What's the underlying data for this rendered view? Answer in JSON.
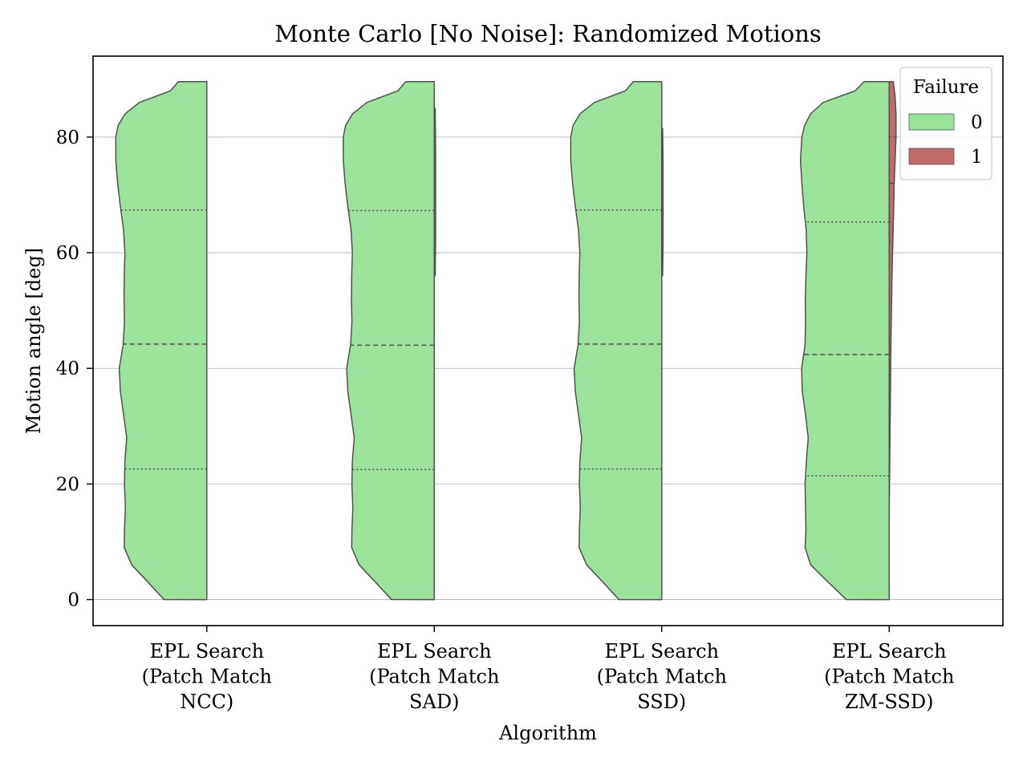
{
  "chart_data": {
    "type": "violin",
    "title": "Monte Carlo [No Noise]: Randomized Motions",
    "xlabel": "Algorithm",
    "ylabel": "Motion angle [deg]",
    "ylim": [
      -4.5,
      94
    ],
    "yticks": [
      0,
      20,
      40,
      60,
      80
    ],
    "grid": "horizontal",
    "legend": {
      "title": "Failure",
      "placement": "top-right",
      "entries": [
        {
          "label": "0",
          "color": "#9be39b"
        },
        {
          "label": "1",
          "color": "#bf6b6b"
        }
      ]
    },
    "categories": [
      [
        "EPL Search",
        "(Patch Match",
        "NCC)"
      ],
      [
        "EPL Search",
        "(Patch Match",
        "SAD)"
      ],
      [
        "EPL Search",
        "(Patch Match",
        "SSD)"
      ],
      [
        "EPL Search",
        "(Patch Match",
        "ZM-SSD)"
      ]
    ],
    "series": [
      {
        "name": "0",
        "color": "#9be39b",
        "groups": [
          {
            "min": 0,
            "max": 89.6,
            "q1": 22.6,
            "median": 44.2,
            "q3": 67.4,
            "profile": [
              [
                0,
                0.188
              ],
              [
                3,
                0.258
              ],
              [
                6,
                0.33
              ],
              [
                9,
                0.363
              ],
              [
                12,
                0.362
              ],
              [
                16,
                0.358
              ],
              [
                20,
                0.362
              ],
              [
                24,
                0.36
              ],
              [
                28,
                0.352
              ],
              [
                32,
                0.366
              ],
              [
                36,
                0.38
              ],
              [
                40,
                0.385
              ],
              [
                44,
                0.368
              ],
              [
                48,
                0.362
              ],
              [
                52,
                0.364
              ],
              [
                56,
                0.363
              ],
              [
                60,
                0.36
              ],
              [
                64,
                0.366
              ],
              [
                68,
                0.38
              ],
              [
                72,
                0.392
              ],
              [
                76,
                0.4
              ],
              [
                80,
                0.4
              ],
              [
                82,
                0.39
              ],
              [
                84,
                0.36
              ],
              [
                86,
                0.296
              ],
              [
                88,
                0.16
              ],
              [
                89.6,
                0.125
              ]
            ]
          },
          {
            "min": 0,
            "max": 89.6,
            "q1": 22.5,
            "median": 44.0,
            "q3": 67.3,
            "profile": [
              [
                0,
                0.188
              ],
              [
                3,
                0.258
              ],
              [
                6,
                0.33
              ],
              [
                9,
                0.363
              ],
              [
                12,
                0.362
              ],
              [
                16,
                0.358
              ],
              [
                20,
                0.362
              ],
              [
                24,
                0.36
              ],
              [
                28,
                0.352
              ],
              [
                32,
                0.366
              ],
              [
                36,
                0.38
              ],
              [
                40,
                0.385
              ],
              [
                44,
                0.368
              ],
              [
                48,
                0.362
              ],
              [
                52,
                0.364
              ],
              [
                56,
                0.363
              ],
              [
                60,
                0.36
              ],
              [
                64,
                0.366
              ],
              [
                68,
                0.38
              ],
              [
                72,
                0.392
              ],
              [
                76,
                0.4
              ],
              [
                80,
                0.4
              ],
              [
                82,
                0.39
              ],
              [
                84,
                0.36
              ],
              [
                86,
                0.296
              ],
              [
                88,
                0.16
              ],
              [
                89.6,
                0.125
              ]
            ]
          },
          {
            "min": 0,
            "max": 89.6,
            "q1": 22.6,
            "median": 44.2,
            "q3": 67.4,
            "profile": [
              [
                0,
                0.188
              ],
              [
                3,
                0.258
              ],
              [
                6,
                0.33
              ],
              [
                9,
                0.363
              ],
              [
                12,
                0.362
              ],
              [
                16,
                0.358
              ],
              [
                20,
                0.362
              ],
              [
                24,
                0.36
              ],
              [
                28,
                0.352
              ],
              [
                32,
                0.366
              ],
              [
                36,
                0.38
              ],
              [
                40,
                0.385
              ],
              [
                44,
                0.368
              ],
              [
                48,
                0.362
              ],
              [
                52,
                0.364
              ],
              [
                56,
                0.363
              ],
              [
                60,
                0.36
              ],
              [
                64,
                0.366
              ],
              [
                68,
                0.38
              ],
              [
                72,
                0.392
              ],
              [
                76,
                0.4
              ],
              [
                80,
                0.4
              ],
              [
                82,
                0.39
              ],
              [
                84,
                0.36
              ],
              [
                86,
                0.296
              ],
              [
                88,
                0.16
              ],
              [
                89.6,
                0.125
              ]
            ]
          },
          {
            "min": 0,
            "max": 89.6,
            "q1": 21.4,
            "median": 42.4,
            "q3": 65.3,
            "profile": [
              [
                0,
                0.188
              ],
              [
                3,
                0.268
              ],
              [
                6,
                0.345
              ],
              [
                9,
                0.37
              ],
              [
                12,
                0.366
              ],
              [
                16,
                0.368
              ],
              [
                20,
                0.37
              ],
              [
                24,
                0.364
              ],
              [
                28,
                0.356
              ],
              [
                32,
                0.368
              ],
              [
                36,
                0.382
              ],
              [
                40,
                0.385
              ],
              [
                44,
                0.37
              ],
              [
                48,
                0.368
              ],
              [
                52,
                0.369
              ],
              [
                56,
                0.366
              ],
              [
                60,
                0.362
              ],
              [
                64,
                0.365
              ],
              [
                68,
                0.376
              ],
              [
                72,
                0.384
              ],
              [
                76,
                0.39
              ],
              [
                80,
                0.384
              ],
              [
                82,
                0.372
              ],
              [
                84,
                0.346
              ],
              [
                86,
                0.29
              ],
              [
                88,
                0.15
              ],
              [
                89.6,
                0.11
              ]
            ]
          }
        ]
      },
      {
        "name": "1",
        "color": "#bf6b6b",
        "groups": [
          null,
          {
            "min": 56,
            "max": 85,
            "q1": 62,
            "median": 70,
            "q3": 78,
            "profile": [
              [
                56,
                0.004
              ],
              [
                62,
                0.006
              ],
              [
                70,
                0.006
              ],
              [
                78,
                0.006
              ],
              [
                85,
                0.004
              ]
            ]
          },
          {
            "min": 56,
            "max": 81.5,
            "q1": 62,
            "median": 68,
            "q3": 75,
            "profile": [
              [
                56,
                0.004
              ],
              [
                62,
                0.006
              ],
              [
                68,
                0.006
              ],
              [
                75,
                0.006
              ],
              [
                81.5,
                0.004
              ]
            ]
          },
          {
            "min": 14.3,
            "max": 89.6,
            "q1": 62,
            "median": 72,
            "q3": 80,
            "profile": [
              [
                14.3,
                0.0
              ],
              [
                30,
                0.004
              ],
              [
                45,
                0.008
              ],
              [
                55,
                0.012
              ],
              [
                62,
                0.016
              ],
              [
                68,
                0.02
              ],
              [
                72,
                0.022
              ],
              [
                76,
                0.026
              ],
              [
                80,
                0.03
              ],
              [
                84,
                0.03
              ],
              [
                87,
                0.026
              ],
              [
                89.6,
                0.018
              ]
            ]
          }
        ]
      }
    ]
  }
}
